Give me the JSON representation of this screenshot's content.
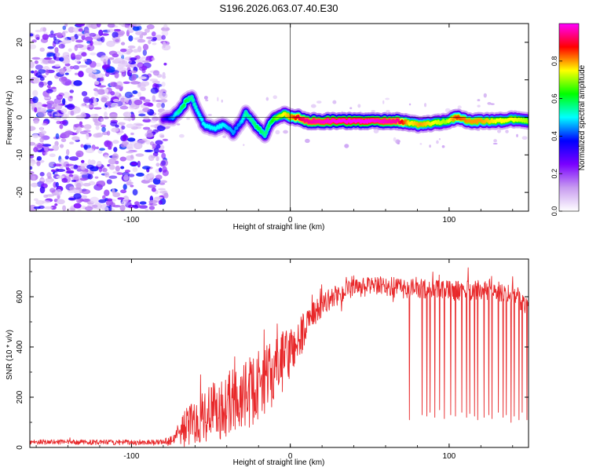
{
  "figure_title": "S196.2026.063.07.40.E30",
  "colors": {
    "snr_line": "#e8282a",
    "axis": "#000000"
  },
  "chart_data": [
    {
      "type": "heatmap",
      "title": "S196.2026.063.07.40.E30",
      "xlabel": "Height of straight line (km)",
      "ylabel": "Frequency (Hz)",
      "xlim": [
        -164,
        150
      ],
      "ylim": [
        -25,
        25
      ],
      "xticks": [
        -100,
        0,
        100
      ],
      "yticks": [
        -20,
        -10,
        0,
        10,
        20
      ],
      "xtick_labels": [
        "-100",
        "0",
        "100"
      ],
      "ytick_labels": [
        "-20",
        "-10",
        "0",
        "10",
        "20"
      ],
      "colorbar": {
        "label": "Normalized spectral amplitude",
        "range": [
          0,
          1
        ],
        "ticks": [
          0,
          0.2,
          0.4,
          0.6,
          0.8
        ],
        "tick_labels": [
          "0.0",
          "0.2",
          "0.4",
          "0.6",
          "0.8"
        ],
        "colormap": [
          "#ffffff",
          "#c89cf0",
          "#7a00ff",
          "#0000ff",
          "#00ffff",
          "#00ff00",
          "#ffff00",
          "#ff0000",
          "#ff00ff"
        ]
      },
      "noise_region": {
        "x_range": [
          -164,
          -78
        ],
        "freq_range": [
          -25,
          25
        ],
        "typical_amplitude": [
          0.05,
          0.25
        ]
      },
      "ridge": [
        {
          "x": -80,
          "f": -0.5,
          "a": 0.3
        },
        {
          "x": -74,
          "f": 0,
          "a": 0.45
        },
        {
          "x": -70,
          "f": 1.5,
          "a": 0.55
        },
        {
          "x": -66,
          "f": 4,
          "a": 0.6
        },
        {
          "x": -62,
          "f": 5.5,
          "a": 0.55
        },
        {
          "x": -58,
          "f": 1,
          "a": 0.5
        },
        {
          "x": -54,
          "f": -2,
          "a": 0.5
        },
        {
          "x": -48,
          "f": -3,
          "a": 0.5
        },
        {
          "x": -42,
          "f": -2,
          "a": 0.5
        },
        {
          "x": -36,
          "f": -4,
          "a": 0.45
        },
        {
          "x": -32,
          "f": -2,
          "a": 0.45
        },
        {
          "x": -28,
          "f": 1,
          "a": 0.55
        },
        {
          "x": -24,
          "f": -1,
          "a": 0.55
        },
        {
          "x": -20,
          "f": -3,
          "a": 0.6
        },
        {
          "x": -16,
          "f": -4.5,
          "a": 0.55
        },
        {
          "x": -12,
          "f": -1,
          "a": 0.6
        },
        {
          "x": -8,
          "f": 0,
          "a": 0.7
        },
        {
          "x": -4,
          "f": 1,
          "a": 0.75
        },
        {
          "x": 0,
          "f": 0,
          "a": 0.8
        },
        {
          "x": 5,
          "f": 0,
          "a": 0.9
        },
        {
          "x": 10,
          "f": -1,
          "a": 0.95
        },
        {
          "x": 30,
          "f": -1,
          "a": 1.0
        },
        {
          "x": 50,
          "f": -1,
          "a": 1.0
        },
        {
          "x": 68,
          "f": -1,
          "a": 0.95
        },
        {
          "x": 75,
          "f": -1.5,
          "a": 0.75
        },
        {
          "x": 82,
          "f": -2,
          "a": 0.8
        },
        {
          "x": 90,
          "f": -1.5,
          "a": 0.75
        },
        {
          "x": 98,
          "f": -1,
          "a": 0.7
        },
        {
          "x": 105,
          "f": 0,
          "a": 0.85
        },
        {
          "x": 112,
          "f": -1,
          "a": 0.8
        },
        {
          "x": 120,
          "f": -1,
          "a": 0.8
        },
        {
          "x": 130,
          "f": -1,
          "a": 0.75
        },
        {
          "x": 140,
          "f": -0.5,
          "a": 0.75
        },
        {
          "x": 150,
          "f": -1,
          "a": 0.7
        }
      ]
    },
    {
      "type": "line",
      "xlabel": "Height of straight line (km)",
      "ylabel": "SNR (10 * v/v)",
      "xlim": [
        -164,
        150
      ],
      "ylim": [
        0,
        750
      ],
      "xticks": [
        -100,
        0,
        100
      ],
      "yticks": [
        0,
        200,
        400,
        600
      ],
      "xtick_labels": [
        "-100",
        "0",
        "100"
      ],
      "ytick_labels": [
        "0",
        "200",
        "400",
        "600"
      ],
      "series": [
        {
          "name": "SNR",
          "color": "#e8282a",
          "step_km": 0.25,
          "trend_x": [
            -164,
            -100,
            -80,
            -75,
            -68,
            -55,
            -40,
            -25,
            -10,
            0,
            10,
            20,
            30,
            40,
            50,
            60,
            70,
            80,
            100,
            120,
            140,
            150
          ],
          "trend_y": [
            22,
            20,
            22,
            30,
            70,
            130,
            170,
            220,
            300,
            380,
            480,
            570,
            610,
            630,
            640,
            640,
            635,
            630,
            625,
            625,
            615,
            560
          ],
          "noise_amplitude": [
            10,
            10,
            10,
            20,
            70,
            110,
            130,
            140,
            130,
            110,
            70,
            45,
            40,
            40,
            40,
            40,
            40,
            40,
            40,
            40,
            40,
            40
          ],
          "dropout_x": [
            75,
            83,
            86,
            88,
            91,
            94,
            97,
            101,
            104,
            108,
            111,
            113,
            116,
            118,
            122,
            125,
            127,
            131,
            134,
            136,
            139,
            141,
            144,
            146,
            149
          ],
          "dropout_y": [
            110,
            130,
            125,
            140,
            120,
            150,
            115,
            130,
            125,
            140,
            120,
            135,
            125,
            110,
            120,
            130,
            115,
            140,
            120,
            130,
            100,
            125,
            110,
            140,
            110
          ]
        }
      ]
    }
  ]
}
